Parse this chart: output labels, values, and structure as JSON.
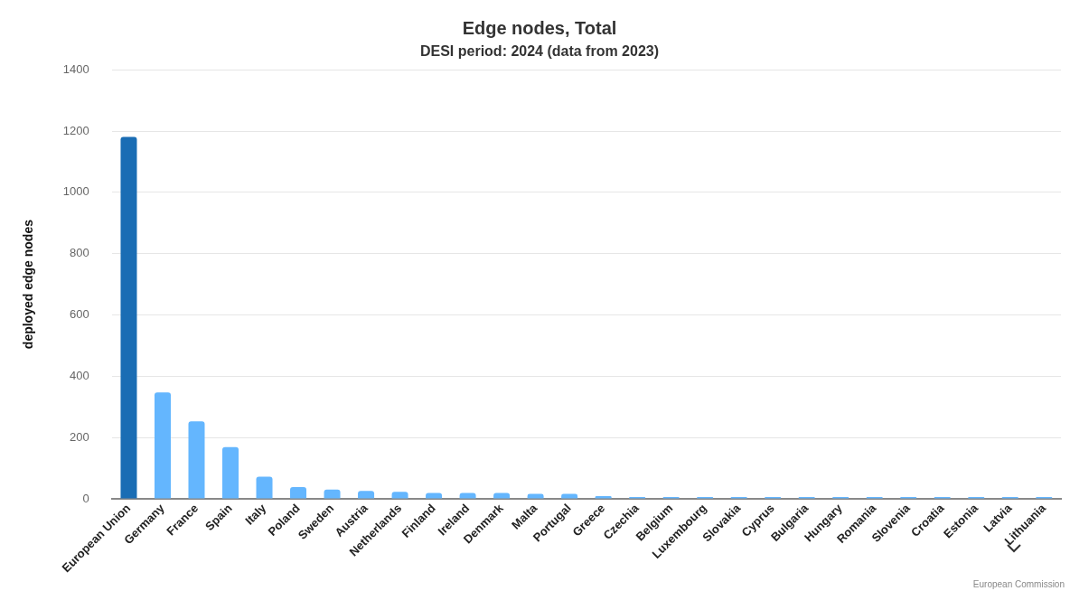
{
  "chart_data": {
    "type": "bar",
    "title": "Edge nodes, Total",
    "subtitle": "DESI period: 2024 (data from 2023)",
    "ylabel": "deployed edge nodes",
    "categories": [
      "European Union",
      "Germany",
      "France",
      "Spain",
      "Italy",
      "Poland",
      "Sweden",
      "Austria",
      "Netherlands",
      "Finland",
      "Ireland",
      "Denmark",
      "Malta",
      "Portugal",
      "Greece",
      "Czechia",
      "Belgium",
      "Luxembourg",
      "Slovakia",
      "Cyprus",
      "Bulgaria",
      "Hungary",
      "Romania",
      "Slovenia",
      "Croatia",
      "Estonia",
      "Latvia",
      "Lithuania"
    ],
    "values": [
      1181,
      347,
      253,
      169,
      72,
      38,
      30,
      26,
      23,
      19,
      19,
      19,
      16,
      16,
      9,
      6,
      6,
      6,
      6,
      6,
      6,
      6,
      6,
      6,
      6,
      6,
      6,
      6
    ],
    "colors": [
      "#1a6db4",
      "#64b6fe",
      "#64b6fe",
      "#64b6fe",
      "#64b6fe",
      "#64b6fe",
      "#64b6fe",
      "#64b6fe",
      "#64b6fe",
      "#64b6fe",
      "#64b6fe",
      "#64b6fe",
      "#64b6fe",
      "#64b6fe",
      "#64b6fe",
      "#64b6fe",
      "#64b6fe",
      "#64b6fe",
      "#64b6fe",
      "#64b6fe",
      "#64b6fe",
      "#64b6fe",
      "#64b6fe",
      "#64b6fe",
      "#64b6fe",
      "#64b6fe",
      "#64b6fe",
      "#64b6fe"
    ],
    "ylim": [
      0,
      1400
    ],
    "yticks": [
      0,
      200,
      400,
      600,
      800,
      1000,
      1200,
      1400
    ],
    "grid": "y",
    "legend": false,
    "annotations": [
      "European Commission"
    ]
  }
}
